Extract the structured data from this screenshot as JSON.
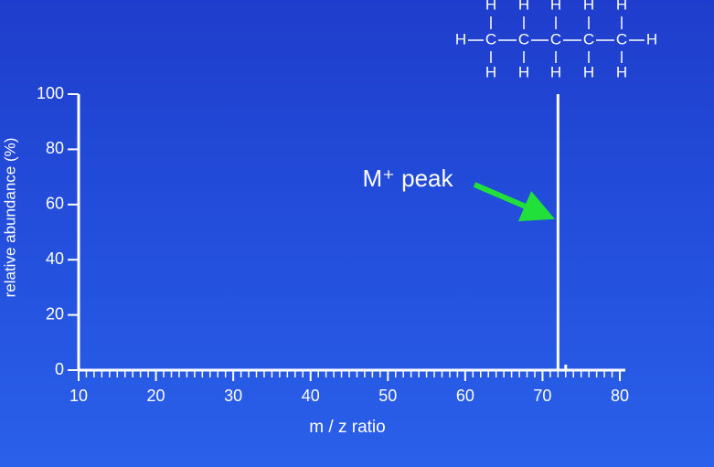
{
  "chart_data": {
    "type": "stem",
    "xlabel": "m / z ratio",
    "ylabel": "relative abundance (%)",
    "annotation": "M⁺ peak",
    "x": [
      72,
      73
    ],
    "values": [
      100,
      2
    ],
    "color": "#ffffff",
    "xlim": [
      10,
      80
    ],
    "xticks": [
      10,
      20,
      30,
      40,
      50,
      60,
      70,
      80
    ],
    "xminorticks": [
      11,
      12,
      13,
      14,
      15,
      16,
      17,
      18,
      19,
      21,
      22,
      23,
      24,
      25,
      26,
      27,
      28,
      29,
      31,
      32,
      33,
      34,
      35,
      36,
      37,
      38,
      39,
      41,
      42,
      43,
      44,
      45,
      46,
      47,
      48,
      49,
      51,
      52,
      53,
      54,
      55,
      56,
      57,
      58,
      59,
      61,
      62,
      63,
      64,
      65,
      66,
      67,
      68,
      69,
      71,
      72,
      73,
      74,
      75,
      76,
      77,
      78,
      79
    ],
    "ylim": [
      0,
      100
    ],
    "yticks": [
      0,
      20,
      40,
      60,
      80,
      100
    ]
  },
  "molecule": {
    "top": [
      "H",
      "H",
      "H",
      "H",
      "H"
    ],
    "middle": [
      "H",
      "C",
      "C",
      "C",
      "C",
      "C",
      "H"
    ],
    "bottom": [
      "H",
      "H",
      "H",
      "H",
      "H"
    ]
  }
}
